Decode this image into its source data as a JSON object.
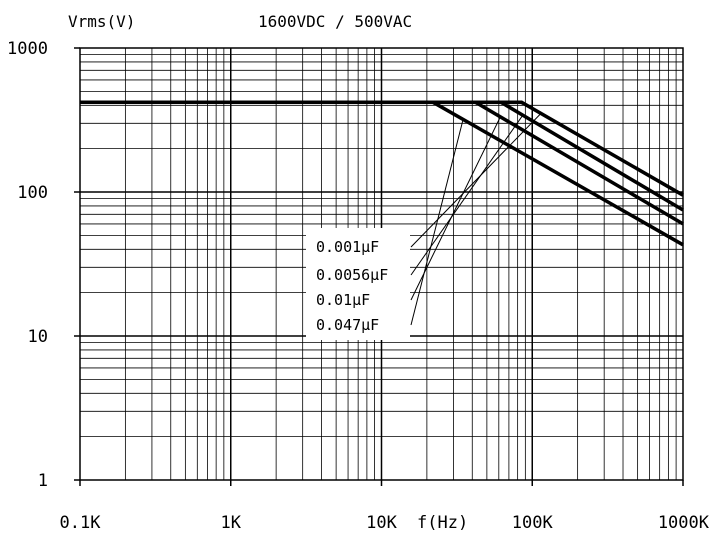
{
  "chart_data": {
    "type": "line",
    "title": "1600VDC / 500VAC",
    "ylabel": "Vrms(V)",
    "xlabel": "f(Hz)",
    "x_scale": "log",
    "y_scale": "log",
    "xlim": [
      100,
      1000000
    ],
    "ylim": [
      1,
      1000
    ],
    "grid": true,
    "x_tick_labels": [
      "0.1K",
      "1K",
      "10K",
      "100K",
      "1000K"
    ],
    "y_tick_labels": [
      "1",
      "10",
      "100",
      "1000"
    ],
    "legend_placement": "center-right",
    "series": [
      {
        "name": "0.001μF",
        "x": [
          100,
          85000,
          1000000
        ],
        "y": [
          420,
          420,
          95
        ]
      },
      {
        "name": "0.0056μF",
        "x": [
          100,
          62000,
          1000000
        ],
        "y": [
          420,
          420,
          75
        ]
      },
      {
        "name": "0.01μF",
        "x": [
          100,
          42000,
          1000000
        ],
        "y": [
          420,
          420,
          60
        ]
      },
      {
        "name": "0.047μF",
        "x": [
          100,
          22000,
          1000000
        ],
        "y": [
          420,
          420,
          43
        ]
      }
    ]
  }
}
